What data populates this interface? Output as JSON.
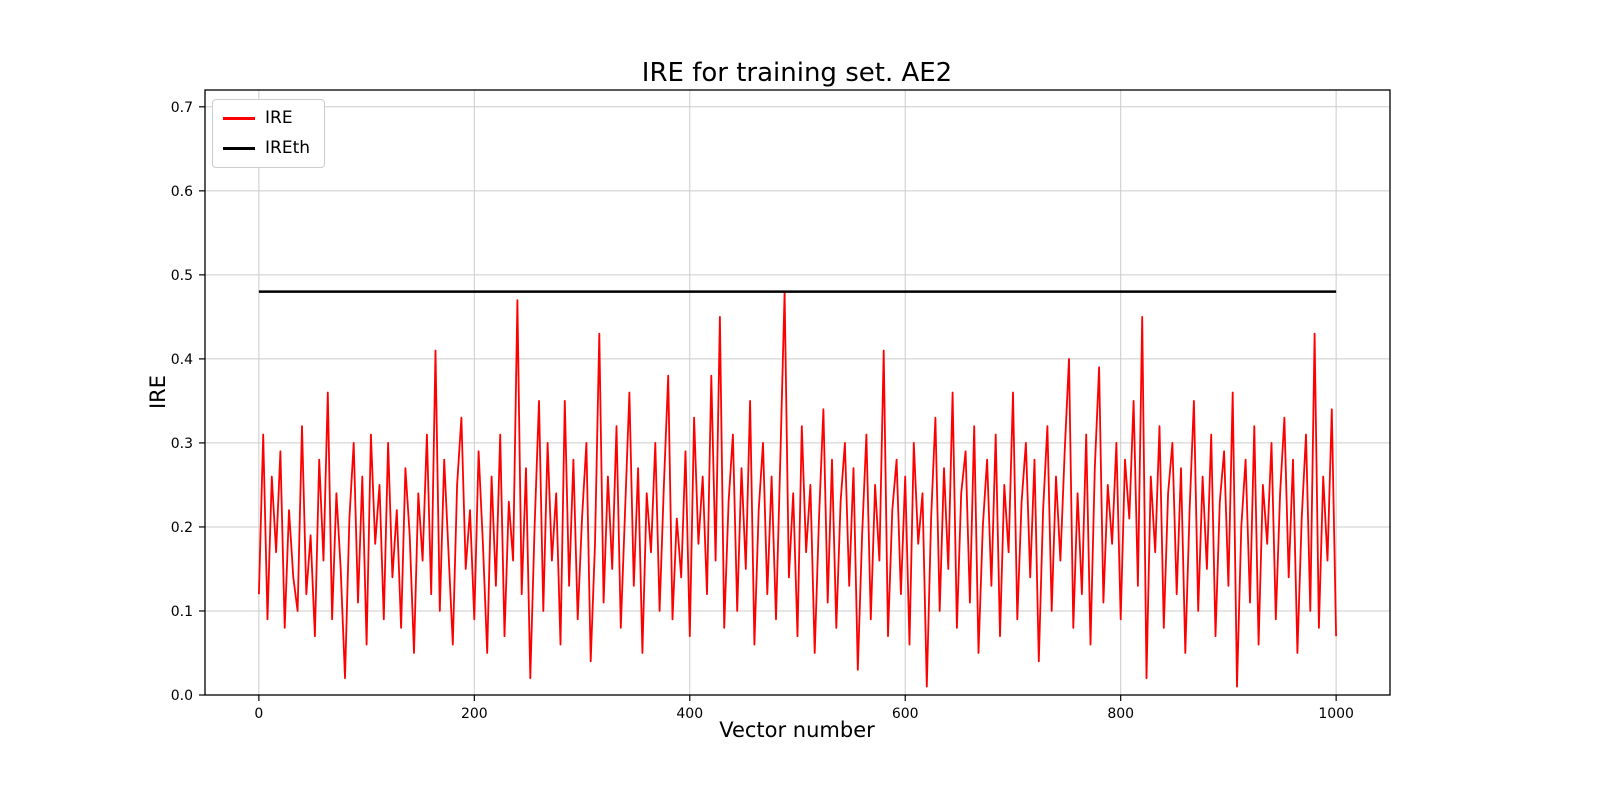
{
  "figure": {
    "title": "IRE for training set. AE2",
    "xlabel": "Vector number",
    "ylabel": "IRE"
  },
  "legend": {
    "items": [
      {
        "label": "IRE",
        "color": "#ff0000"
      },
      {
        "label": "IREth",
        "color": "#000000"
      }
    ]
  },
  "chart_data": {
    "type": "line",
    "title": "IRE for training set. AE2",
    "xlabel": "Vector number",
    "ylabel": "IRE",
    "xlim": [
      -50,
      1050
    ],
    "ylim": [
      0,
      0.72
    ],
    "x_ticks": [
      0,
      200,
      400,
      600,
      800,
      1000
    ],
    "y_ticks": [
      0.0,
      0.1,
      0.2,
      0.3,
      0.4,
      0.5,
      0.6,
      0.7
    ],
    "grid": true,
    "legend_position": "upper left",
    "background": "#ffffff",
    "grid_color": "#cccccc",
    "series": [
      {
        "name": "IRE",
        "color": "#ff0000",
        "x_start": 0,
        "x_step": 4,
        "values": [
          0.12,
          0.31,
          0.09,
          0.26,
          0.17,
          0.29,
          0.08,
          0.22,
          0.14,
          0.1,
          0.32,
          0.12,
          0.19,
          0.07,
          0.28,
          0.16,
          0.36,
          0.09,
          0.24,
          0.15,
          0.02,
          0.21,
          0.3,
          0.11,
          0.26,
          0.06,
          0.31,
          0.18,
          0.25,
          0.09,
          0.3,
          0.14,
          0.22,
          0.08,
          0.27,
          0.19,
          0.05,
          0.24,
          0.16,
          0.31,
          0.12,
          0.41,
          0.1,
          0.28,
          0.17,
          0.06,
          0.25,
          0.33,
          0.15,
          0.22,
          0.09,
          0.29,
          0.18,
          0.05,
          0.26,
          0.13,
          0.31,
          0.07,
          0.23,
          0.16,
          0.47,
          0.12,
          0.27,
          0.02,
          0.2,
          0.35,
          0.1,
          0.3,
          0.16,
          0.24,
          0.06,
          0.35,
          0.13,
          0.28,
          0.09,
          0.21,
          0.3,
          0.04,
          0.18,
          0.43,
          0.11,
          0.26,
          0.15,
          0.32,
          0.08,
          0.22,
          0.36,
          0.13,
          0.27,
          0.05,
          0.24,
          0.17,
          0.3,
          0.1,
          0.25,
          0.38,
          0.09,
          0.21,
          0.14,
          0.29,
          0.07,
          0.33,
          0.18,
          0.26,
          0.12,
          0.38,
          0.16,
          0.45,
          0.08,
          0.23,
          0.31,
          0.1,
          0.27,
          0.15,
          0.35,
          0.06,
          0.22,
          0.3,
          0.12,
          0.26,
          0.09,
          0.28,
          0.48,
          0.14,
          0.24,
          0.07,
          0.32,
          0.17,
          0.25,
          0.05,
          0.21,
          0.34,
          0.11,
          0.28,
          0.08,
          0.23,
          0.3,
          0.13,
          0.27,
          0.03,
          0.19,
          0.31,
          0.09,
          0.25,
          0.16,
          0.41,
          0.07,
          0.22,
          0.28,
          0.12,
          0.26,
          0.06,
          0.3,
          0.18,
          0.24,
          0.01,
          0.21,
          0.33,
          0.1,
          0.27,
          0.15,
          0.36,
          0.08,
          0.24,
          0.29,
          0.11,
          0.32,
          0.05,
          0.2,
          0.28,
          0.13,
          0.31,
          0.07,
          0.25,
          0.17,
          0.36,
          0.09,
          0.23,
          0.3,
          0.14,
          0.28,
          0.04,
          0.22,
          0.32,
          0.1,
          0.26,
          0.16,
          0.29,
          0.4,
          0.08,
          0.24,
          0.12,
          0.31,
          0.06,
          0.27,
          0.39,
          0.11,
          0.25,
          0.18,
          0.3,
          0.09,
          0.28,
          0.21,
          0.35,
          0.13,
          0.45,
          0.02,
          0.26,
          0.17,
          0.32,
          0.08,
          0.24,
          0.3,
          0.12,
          0.27,
          0.05,
          0.22,
          0.35,
          0.1,
          0.26,
          0.15,
          0.31,
          0.07,
          0.23,
          0.29,
          0.13,
          0.36,
          0.01,
          0.2,
          0.28,
          0.11,
          0.32,
          0.06,
          0.25,
          0.18,
          0.3,
          0.09,
          0.24,
          0.33,
          0.14,
          0.28,
          0.05,
          0.21,
          0.31,
          0.1,
          0.43,
          0.08,
          0.26,
          0.16,
          0.34,
          0.07
        ]
      },
      {
        "name": "IREth",
        "color": "#000000",
        "type": "hline",
        "value": 0.48,
        "x_range": [
          0,
          1000
        ]
      }
    ]
  }
}
